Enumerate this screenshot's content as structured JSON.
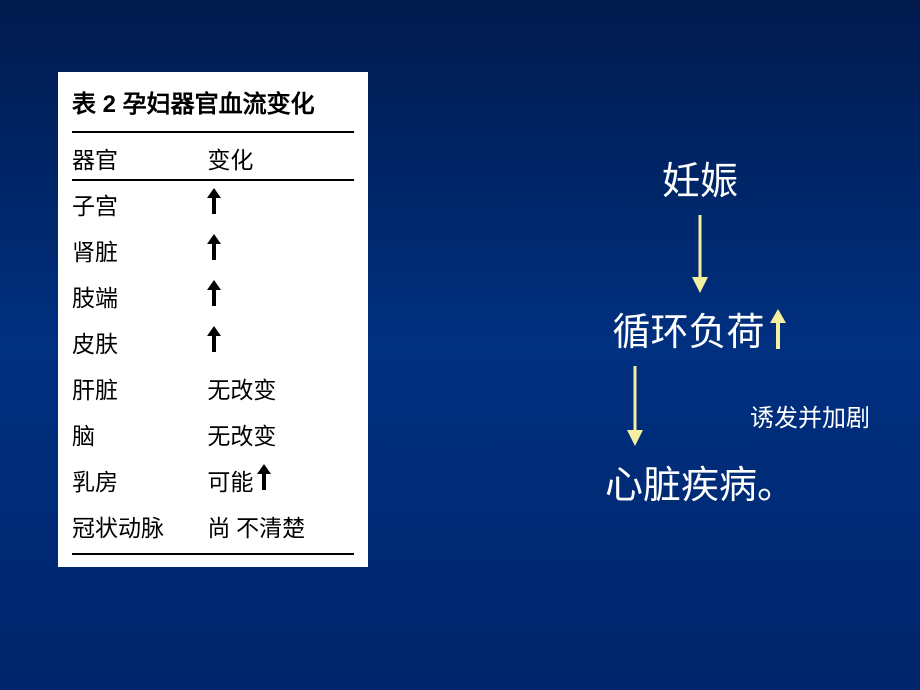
{
  "table": {
    "title": "表 2 孕妇器官血流变化",
    "header_organ": "器官",
    "header_change": "变化",
    "rows": [
      {
        "organ": "子宫",
        "change_type": "arrow"
      },
      {
        "organ": "肾脏",
        "change_type": "arrow"
      },
      {
        "organ": "肢端",
        "change_type": "arrow"
      },
      {
        "organ": "皮肤",
        "change_type": "arrow"
      },
      {
        "organ": "肝脏",
        "change_type": "text",
        "change_text": "无改变"
      },
      {
        "organ": "脑",
        "change_type": "text",
        "change_text": "无改变"
      },
      {
        "organ": "乳房",
        "change_type": "text_arrow",
        "change_text": "可能"
      },
      {
        "organ": "冠状动脉",
        "change_type": "text",
        "change_text": "尚 不清楚"
      }
    ]
  },
  "flow": {
    "item1": "妊娠",
    "item2": "循环负荷",
    "annotation": "诱发并加剧",
    "item3": "心脏疾病。"
  },
  "colors": {
    "background_top": "#001a4d",
    "background_mid": "#003080",
    "table_bg": "#ffffff",
    "table_text": "#000000",
    "flow_text": "#ffffff",
    "arrow_yellow": "#f5f0a0"
  },
  "arrow_glyph": "↑"
}
